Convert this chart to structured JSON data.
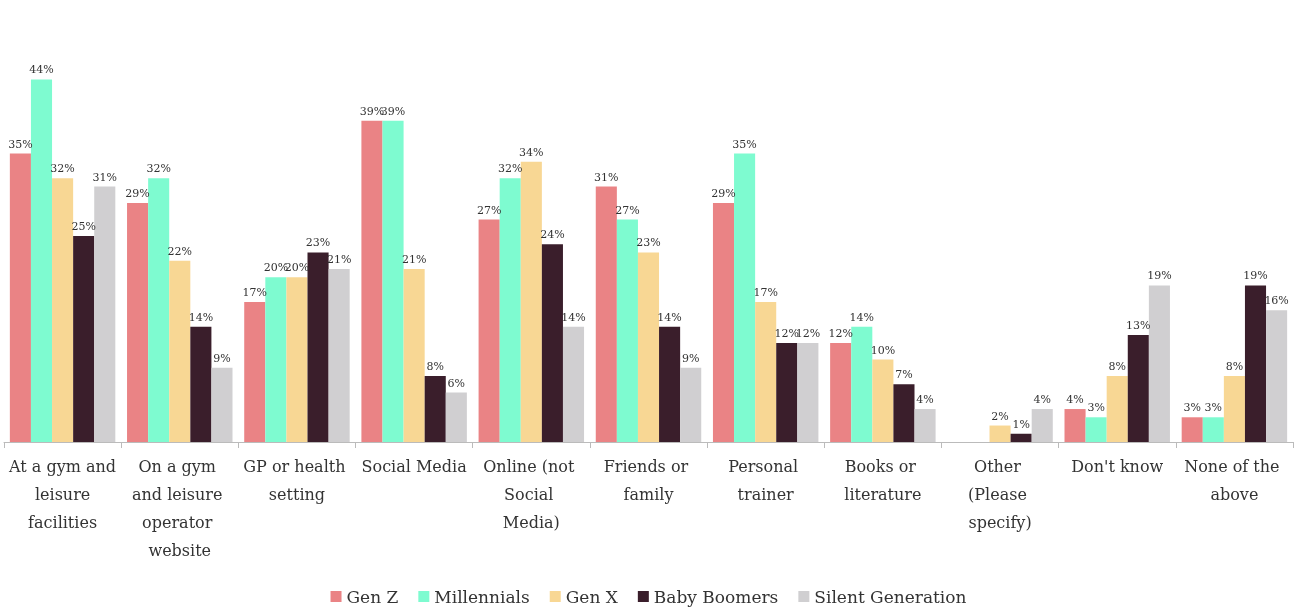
{
  "chart_data": {
    "type": "bar",
    "categories": [
      "At a gym and leisure facilities",
      "On a gym and leisure operator website",
      "GP or health setting",
      "Social Media",
      "Online (not Social Media)",
      "Friends or family",
      "Personal trainer",
      "Books or literature",
      "Other (Please specify)",
      "Don't know",
      "None of the above"
    ],
    "series": [
      {
        "name": "Gen Z",
        "color": "#ea8385",
        "values": [
          35,
          29,
          17,
          39,
          27,
          31,
          29,
          12,
          0,
          4,
          3
        ],
        "value_labels": [
          "35%",
          "29%",
          "17%",
          "39%",
          "27%",
          "31%",
          "29%",
          "12%",
          null,
          "4%",
          "3%"
        ]
      },
      {
        "name": "Millennials",
        "color": "#7efbd0",
        "values": [
          44,
          32,
          20,
          39,
          32,
          27,
          35,
          14,
          0,
          3,
          3
        ],
        "value_labels": [
          "44%",
          "32%",
          "20%",
          "39%",
          "32%",
          "27%",
          "35%",
          "14%",
          null,
          "3%",
          "3%"
        ]
      },
      {
        "name": "Gen X",
        "color": "#f8d794",
        "values": [
          32,
          22,
          20,
          21,
          34,
          23,
          17,
          10,
          2,
          8,
          8
        ],
        "value_labels": [
          "32%",
          "22%",
          "20%",
          "21%",
          "34%",
          "23%",
          "17%",
          "10%",
          "2%",
          "8%",
          "8%"
        ]
      },
      {
        "name": "Baby Boomers",
        "color": "#3a1e2b",
        "values": [
          25,
          14,
          23,
          8,
          24,
          14,
          12,
          7,
          1,
          13,
          19
        ],
        "value_labels": [
          "25%",
          "14%",
          "23%",
          "8%",
          "24%",
          "14%",
          "12%",
          "7%",
          "1%",
          "13%",
          "19%"
        ]
      },
      {
        "name": "Silent Generation",
        "color": "#d0cfd1",
        "values": [
          31,
          9,
          21,
          6,
          14,
          9,
          12,
          4,
          4,
          19,
          16
        ],
        "value_labels": [
          "31%",
          "9%",
          "21%",
          "6%",
          "14%",
          "9%",
          "12%",
          "4%",
          "4%",
          "19%",
          "16%"
        ]
      }
    ],
    "legend": "bottom"
  }
}
